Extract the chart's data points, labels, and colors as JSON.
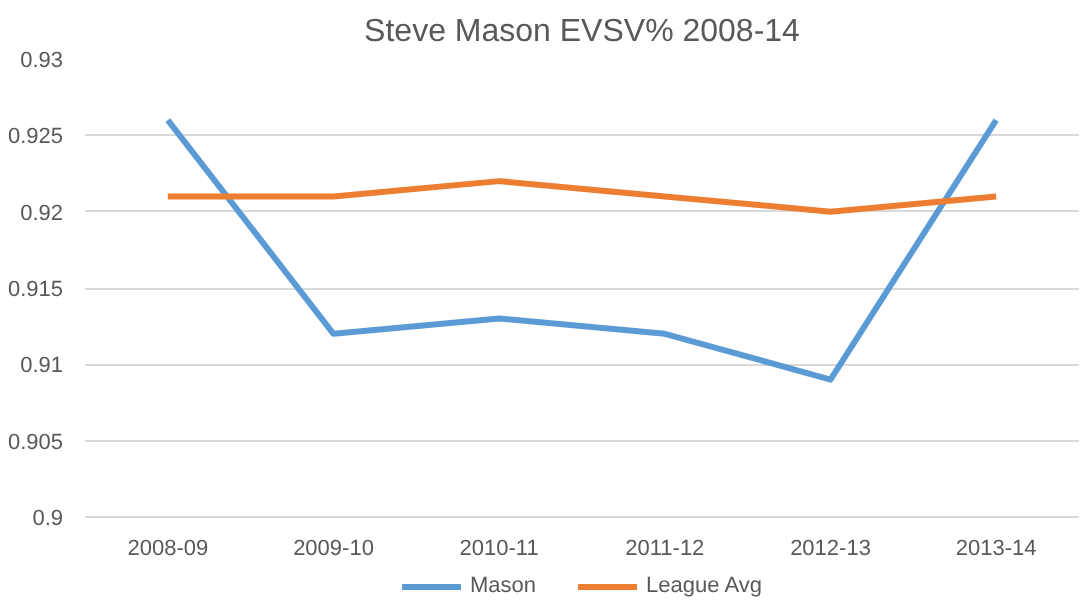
{
  "chart_data": {
    "type": "line",
    "title": "Steve Mason EVSV% 2008-14",
    "categories": [
      "2008-09",
      "2009-10",
      "2010-11",
      "2011-12",
      "2012-13",
      "2013-14"
    ],
    "series": [
      {
        "name": "Mason",
        "color": "#5b9bd5",
        "values": [
          0.926,
          0.912,
          0.913,
          0.912,
          0.909,
          0.926
        ]
      },
      {
        "name": "League Avg",
        "color": "#ed7d31",
        "values": [
          0.921,
          0.921,
          0.922,
          0.921,
          0.92,
          0.921
        ]
      }
    ],
    "ylim": [
      0.9,
      0.93
    ],
    "yticks": [
      0.9,
      0.905,
      0.91,
      0.915,
      0.92,
      0.925,
      0.93
    ],
    "grid": "y",
    "legend": "bottom",
    "marker": "none",
    "line_style": "solid"
  }
}
